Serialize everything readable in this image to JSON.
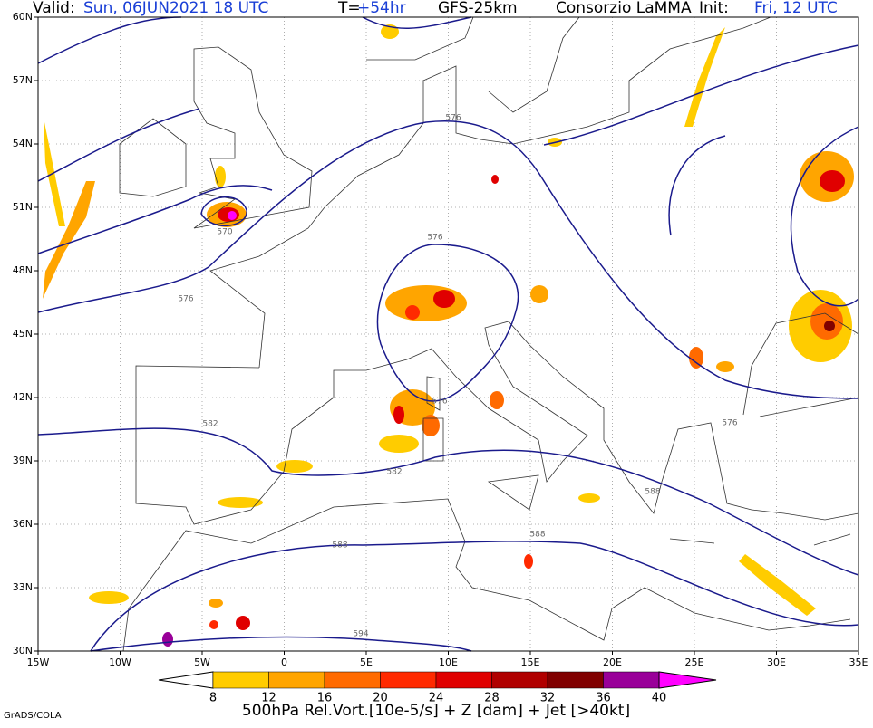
{
  "header": {
    "valid_label": "Valid:",
    "valid_time": "Sun, 06JUN2021 18 UTC",
    "lead_label": "T=",
    "lead_time": "+54hr",
    "model": "GFS-25km",
    "provider": "Consorzio LaMMA",
    "init_label": "Init:",
    "init_time": "Fri, 12 UTC"
  },
  "map": {
    "lat_labels": [
      "30N",
      "33N",
      "36N",
      "39N",
      "42N",
      "45N",
      "48N",
      "51N",
      "54N",
      "57N",
      "60N"
    ],
    "lon_labels": [
      "15W",
      "10W",
      "5W",
      "0",
      "5E",
      "10E",
      "15E",
      "20E",
      "25E",
      "30E",
      "35E"
    ],
    "contour_labels": [
      "570",
      "576",
      "576",
      "576",
      "576",
      "576",
      "582",
      "582",
      "588",
      "588",
      "588",
      "594"
    ]
  },
  "colorbar": {
    "labels": [
      "8",
      "12",
      "16",
      "20",
      "24",
      "28",
      "32",
      "36",
      "40"
    ],
    "colors": [
      "#ffffff",
      "#ffcc00",
      "#ffa500",
      "#ff6a00",
      "#ff2a00",
      "#e00000",
      "#b00000",
      "#800000",
      "#990099",
      "#ff00ff"
    ]
  },
  "footer": {
    "caption": "500hPa Rel.Vort.[10e-5/s] + Z [dam] + Jet [>40kt]",
    "credit": "GrADS/COLA"
  }
}
